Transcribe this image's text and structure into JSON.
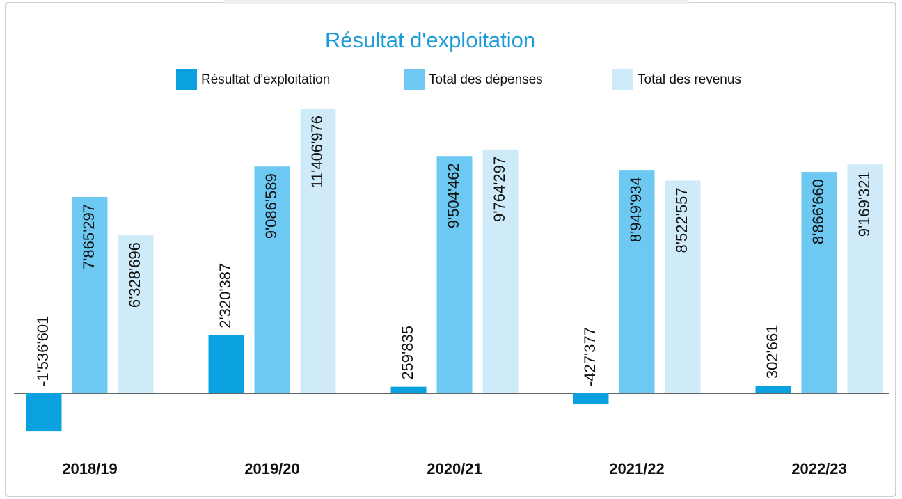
{
  "chart_data": {
    "type": "bar",
    "title": "Résultat d'exploitation",
    "categories": [
      "2018/19",
      "2019/20",
      "2020/21",
      "2021/22",
      "2022/23"
    ],
    "series": [
      {
        "name": "Résultat d'exploitation",
        "color": "#0ba0df",
        "values": [
          -1536601,
          2320387,
          259835,
          -427377,
          302661
        ],
        "value_labels": [
          "-1'536'601",
          "2'320'387",
          "259'835",
          "-427'377",
          "302'661"
        ]
      },
      {
        "name": "Total des dépenses",
        "color": "#6dc9f1",
        "values": [
          7865297,
          9086589,
          9504462,
          8949934,
          8866660
        ],
        "value_labels": [
          "7'865'297",
          "9'086'589",
          "9'504'462",
          "8'949'934",
          "8'866'660"
        ]
      },
      {
        "name": "Total des revenus",
        "color": "#cfebf9",
        "values": [
          6328696,
          11406976,
          9764297,
          8522557,
          9169321
        ],
        "value_labels": [
          "6'328'696",
          "11'406'976",
          "9'764'297",
          "8'522'557",
          "9'169'321"
        ]
      }
    ],
    "legend": "top"
  }
}
